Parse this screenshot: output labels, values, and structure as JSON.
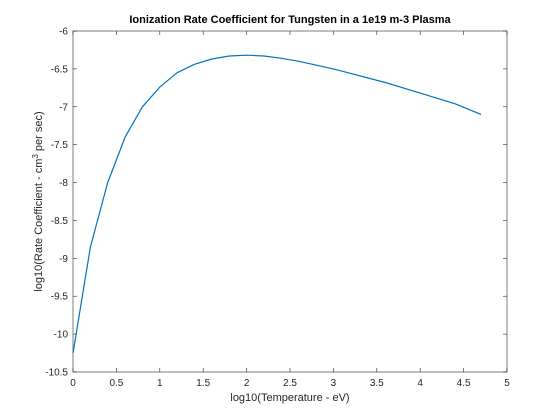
{
  "chart_data": {
    "type": "line",
    "title": "Ionization Rate Coefficient for Tungsten in a 1e19 m-3 Plasma",
    "xlabel": "log10(Temperature - eV)",
    "ylabel": {
      "before": "log10(Rate Coefficient - cm",
      "superscript": "3",
      "after": " per sec)"
    },
    "xlim": [
      0,
      5
    ],
    "ylim": [
      -10.5,
      -6
    ],
    "x_ticks": [
      "0",
      "0.5",
      "1",
      "1.5",
      "2",
      "2.5",
      "3",
      "3.5",
      "4",
      "4.5",
      "5"
    ],
    "y_ticks": [
      "-10.5",
      "-10",
      "-9.5",
      "-9",
      "-8.5",
      "-8",
      "-7.5",
      "-7",
      "-6.5",
      "-6"
    ],
    "grid": false,
    "series": [
      {
        "color": "#0072BD",
        "x": [
          0,
          0.2,
          0.4,
          0.6,
          0.8,
          1.0,
          1.2,
          1.4,
          1.6,
          1.8,
          2.0,
          2.2,
          2.4,
          2.6,
          2.8,
          3.0,
          3.2,
          3.4,
          3.6,
          3.8,
          4.0,
          4.2,
          4.4,
          4.7
        ],
        "y": [
          -10.25,
          -8.85,
          -8.0,
          -7.4,
          -7.0,
          -6.74,
          -6.55,
          -6.44,
          -6.37,
          -6.33,
          -6.32,
          -6.33,
          -6.36,
          -6.4,
          -6.45,
          -6.5,
          -6.56,
          -6.62,
          -6.68,
          -6.75,
          -6.82,
          -6.89,
          -6.96,
          -7.1
        ]
      }
    ]
  }
}
